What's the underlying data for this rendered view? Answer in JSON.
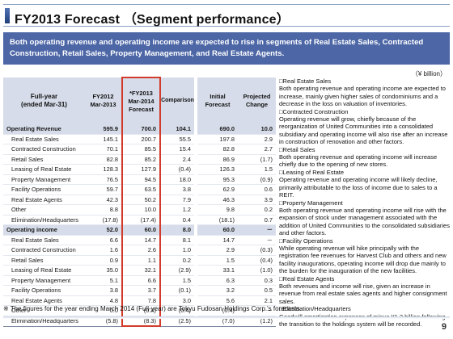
{
  "title": "FY2013 Forecast （Segment performance）",
  "lead": "Both operating revenue and operating income are expected to rise in segments of Real Estate Sales, Contracted Construction, Retail Sales, Property Management, and Real Estate Agents.",
  "unit": "（¥ billion）",
  "table": {
    "headers": {
      "label": "Full-year\n(ended Mar-31)",
      "fy2012": "FY2012\nMar-2013",
      "fy2014": "*FY2013\nMar-2014\nForecast",
      "comparison": "Comparison",
      "initial": "Initial\nForecast",
      "projected": "Projected\nChange"
    },
    "rows": [
      {
        "label": "Operating Revenue",
        "fy2012": "595.9",
        "fy2014": "700.0",
        "comparison": "104.1",
        "initial": "690.0",
        "projected": "10.0"
      },
      {
        "label": "Real Estate Sales",
        "fy2012": "145.1",
        "fy2014": "200.7",
        "comparison": "55.5",
        "initial": "197.8",
        "projected": "2.9"
      },
      {
        "label": "Contracted Construction",
        "fy2012": "70.1",
        "fy2014": "85.5",
        "comparison": "15.4",
        "initial": "82.8",
        "projected": "2.7"
      },
      {
        "label": "Retail Sales",
        "fy2012": "82.8",
        "fy2014": "85.2",
        "comparison": "2.4",
        "initial": "86.9",
        "projected": "(1.7)"
      },
      {
        "label": "Leasing of Real Estate",
        "fy2012": "128.3",
        "fy2014": "127.9",
        "comparison": "(0.4)",
        "initial": "126.3",
        "projected": "1.5"
      },
      {
        "label": "Property Management",
        "fy2012": "76.5",
        "fy2014": "94.5",
        "comparison": "18.0",
        "initial": "95.3",
        "projected": "(0.9)"
      },
      {
        "label": "Facility Operations",
        "fy2012": "59.7",
        "fy2014": "63.5",
        "comparison": "3.8",
        "initial": "62.9",
        "projected": "0.6"
      },
      {
        "label": "Real Estate Agents",
        "fy2012": "42.3",
        "fy2014": "50.2",
        "comparison": "7.9",
        "initial": "46.3",
        "projected": "3.9"
      },
      {
        "label": "Other",
        "fy2012": "8.8",
        "fy2014": "10.0",
        "comparison": "1.2",
        "initial": "9.8",
        "projected": "0.2"
      },
      {
        "label": "Elimination/Headquarters",
        "fy2012": "(17.8)",
        "fy2014": "(17.4)",
        "comparison": "0.4",
        "initial": "(18.1)",
        "projected": "0.7"
      },
      {
        "label": "Operating income",
        "fy2012": "52.0",
        "fy2014": "60.0",
        "comparison": "8.0",
        "initial": "60.0",
        "projected": "－"
      },
      {
        "label": "Real Estate Sales",
        "fy2012": "6.6",
        "fy2014": "14.7",
        "comparison": "8.1",
        "initial": "14.7",
        "projected": "－"
      },
      {
        "label": "Contracted Construction",
        "fy2012": "1.6",
        "fy2014": "2.6",
        "comparison": "1.0",
        "initial": "2.9",
        "projected": "(0.3)"
      },
      {
        "label": "Retail Sales",
        "fy2012": "0.9",
        "fy2014": "1.1",
        "comparison": "0.2",
        "initial": "1.5",
        "projected": "(0.4)"
      },
      {
        "label": "Leasing of Real Estate",
        "fy2012": "35.0",
        "fy2014": "32.1",
        "comparison": "(2.9)",
        "initial": "33.1",
        "projected": "(1.0)"
      },
      {
        "label": "Property Management",
        "fy2012": "5.1",
        "fy2014": "6.6",
        "comparison": "1.5",
        "initial": "6.3",
        "projected": "0.3"
      },
      {
        "label": "Facility Operations",
        "fy2012": "3.8",
        "fy2014": "3.7",
        "comparison": "(0.1)",
        "initial": "3.2",
        "projected": "0.5"
      },
      {
        "label": "Real Estate Agents",
        "fy2012": "4.8",
        "fy2014": "7.8",
        "comparison": "3.0",
        "initial": "5.6",
        "projected": "2.1"
      },
      {
        "label": "Other",
        "fy2012": "0.0",
        "fy2014": "(0.4)",
        "comparison": "(0.4)",
        "initial": "(0.4)",
        "projected": "－"
      },
      {
        "label": "Elimination/Headquarters",
        "fy2012": "(5.8)",
        "fy2014": "(8.3)",
        "comparison": "(2.5)",
        "initial": "(7.0)",
        "projected": "(1.2)"
      }
    ]
  },
  "notes": [
    {
      "head": "□Real Estate Sales",
      "body": "Both operating revenue and operating income are expected to increase, mainly given higher sales of condominiums and a decrease in the loss on valuation of inventories."
    },
    {
      "head": "□Contracted Construction",
      "body": "Operating revenue will grow, chiefly because of the reorganization of United Communities into a consolidated subsidiary and operating income will also rise after an increase in construction of renovation and other factors."
    },
    {
      "head": "□Retail Sales",
      "body": "Both operating revenue and operating income will increase chiefly due to the opening of new stores."
    },
    {
      "head": "□Leasing of Real Estate",
      "body": "Operating revenue and operating income will likely decline, primarily attributable to the loss of income due to sales to a REIT."
    },
    {
      "head": "□Property Management",
      "body": "Both operating revenue and operating income will rise with the expansion of stock under management associated with the addition of United Communities to the consolidated subsidiaries and other factors."
    },
    {
      "head": "□Facility Operations",
      "body": "While operating revenue will hike principally with the registration fee revenues for Harvest Club and others and new facility inaugurations, operating income will drop due mainly to the burden for the inauguration of the new facilities."
    },
    {
      "head": "□Real Estate Agents",
      "body": "Both revenues and income will rise, given an increase in revenue from real estate sales agents and higher consignment sales."
    },
    {
      "head": "□Elimination/Headquarters",
      "body": "Goodwill amortization expenses of minus ¥1.2 billion following the transition to the holdings system will be recorded."
    }
  ],
  "footnote": "※ The figures for the year ending March 2014 (Full-year) are Tokyu Fudosan Holdings Corp.'s forecasts.",
  "page_number": "9",
  "colors": {
    "accent": "#4c66a6",
    "header_fill": "#d6dce9",
    "highlight_border": "#d23b2b"
  }
}
